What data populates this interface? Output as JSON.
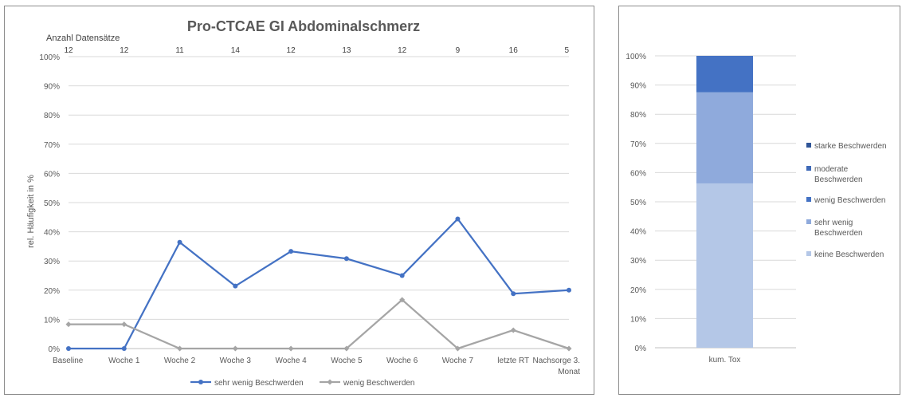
{
  "chart_data": [
    {
      "type": "line",
      "title": "Pro-CTCAE GI Abdominalschmerz",
      "ylabel": "rel. Häufigkeit in %",
      "top_axis_label": "Anzahl Datensätze",
      "categories": [
        "Baseline",
        "Woche 1",
        "Woche 2",
        "Woche 3",
        "Woche 4",
        "Woche 5",
        "Woche 6",
        "Woche 7",
        "letzte RT",
        "Nachsorge 3. Monat"
      ],
      "counts": [
        "12",
        "12",
        "11",
        "14",
        "12",
        "13",
        "12",
        "9",
        "16",
        "5"
      ],
      "y_ticks": [
        "0%",
        "10%",
        "20%",
        "30%",
        "40%",
        "50%",
        "60%",
        "70%",
        "80%",
        "90%",
        "100%"
      ],
      "ylim": [
        0,
        100
      ],
      "grid": true,
      "legend_position": "bottom",
      "series": [
        {
          "name": "sehr wenig Beschwerden",
          "color": "#4472c4",
          "marker": "circle",
          "values": [
            0,
            0,
            36.4,
            21.4,
            33.3,
            30.8,
            25.0,
            44.4,
            18.8,
            20.0
          ]
        },
        {
          "name": "wenig Beschwerden",
          "color": "#a5a5a5",
          "marker": "diamond",
          "values": [
            8.3,
            8.3,
            0,
            0,
            0,
            0,
            16.7,
            0,
            6.3,
            0
          ]
        }
      ]
    },
    {
      "type": "bar",
      "stacked": true,
      "categories": [
        "kum. Tox"
      ],
      "y_ticks": [
        "0%",
        "10%",
        "20%",
        "30%",
        "40%",
        "50%",
        "60%",
        "70%",
        "80%",
        "90%",
        "100%"
      ],
      "ylim": [
        0,
        100
      ],
      "grid": true,
      "legend_position": "right",
      "series": [
        {
          "name": "keine Beschwerden",
          "color": "#b4c7e7",
          "values": [
            56.3
          ]
        },
        {
          "name": "sehr wenig Beschwerden",
          "color": "#8faadc",
          "values": [
            31.2
          ]
        },
        {
          "name": "wenig Beschwerden",
          "color": "#4472c4",
          "values": [
            12.5
          ]
        },
        {
          "name": "moderate Beschwerden",
          "color": "#3f6ab8",
          "values": [
            0
          ]
        },
        {
          "name": "starke Beschwerden",
          "color": "#2f5597",
          "values": [
            0
          ]
        }
      ],
      "legend_order": [
        "starke Beschwerden",
        "moderate Beschwerden",
        "wenig Beschwerden",
        "sehr wenig Beschwerden",
        "keine Beschwerden"
      ]
    }
  ]
}
